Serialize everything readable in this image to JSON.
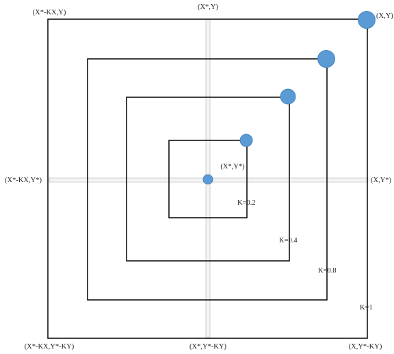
{
  "labels": {
    "top_left": "(X*-KX,Y)",
    "top_center": "(X*,Y)",
    "top_right": "(X,Y)",
    "left_center": "(X*-KX,Y*)",
    "right_center": "(X,Y*)",
    "bottom_left": "(X*-KX,Y*-KY)",
    "bottom_center": "(X*,Y*-KY)",
    "bottom_right": "(X,Y*-KY)",
    "center_point": "(X*,Y*)"
  },
  "squares": [
    {
      "k_label": "K=0.2"
    },
    {
      "k_label": "K=0.4"
    },
    {
      "k_label": "K=0.8"
    },
    {
      "k_label": "K=1"
    }
  ],
  "colors": {
    "square_stroke": "#000000",
    "axis_stroke": "#cfcfcf",
    "axis_fill": "#f4f4f4",
    "dot_fill": "#5b9bd5",
    "dot_stroke": "#4a86c0"
  }
}
